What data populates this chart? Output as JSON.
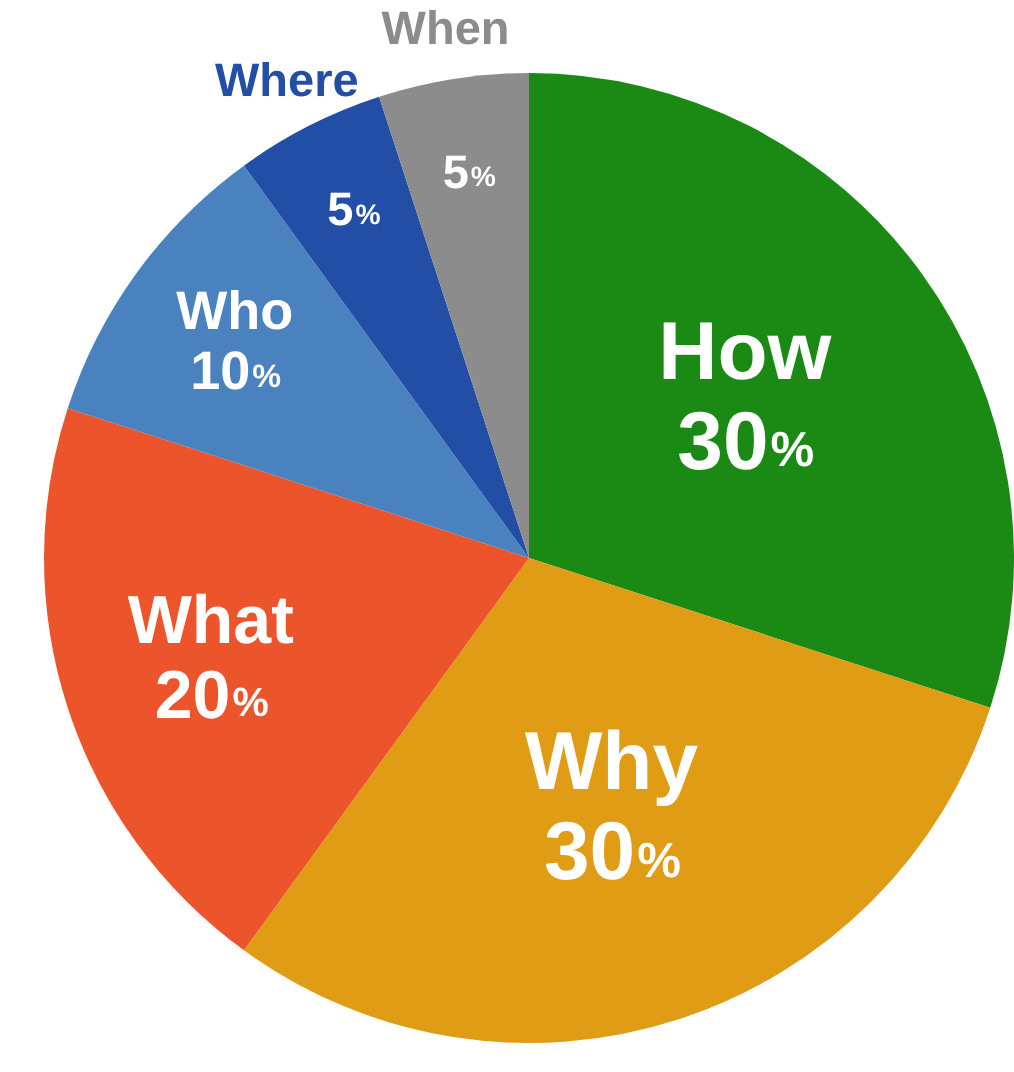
{
  "chart_data": {
    "type": "pie",
    "categories": [
      "How",
      "Why",
      "What",
      "Who",
      "Where",
      "When"
    ],
    "values": [
      30,
      30,
      20,
      10,
      5,
      5
    ],
    "colors": [
      "#1a8a14",
      "#e09c14",
      "#ec552c",
      "#4a82c0",
      "#234ea6",
      "#8c8c8c"
    ],
    "value_labels": [
      "30%",
      "30%",
      "20%",
      "10%",
      "5%",
      "5%"
    ],
    "legend": false
  }
}
